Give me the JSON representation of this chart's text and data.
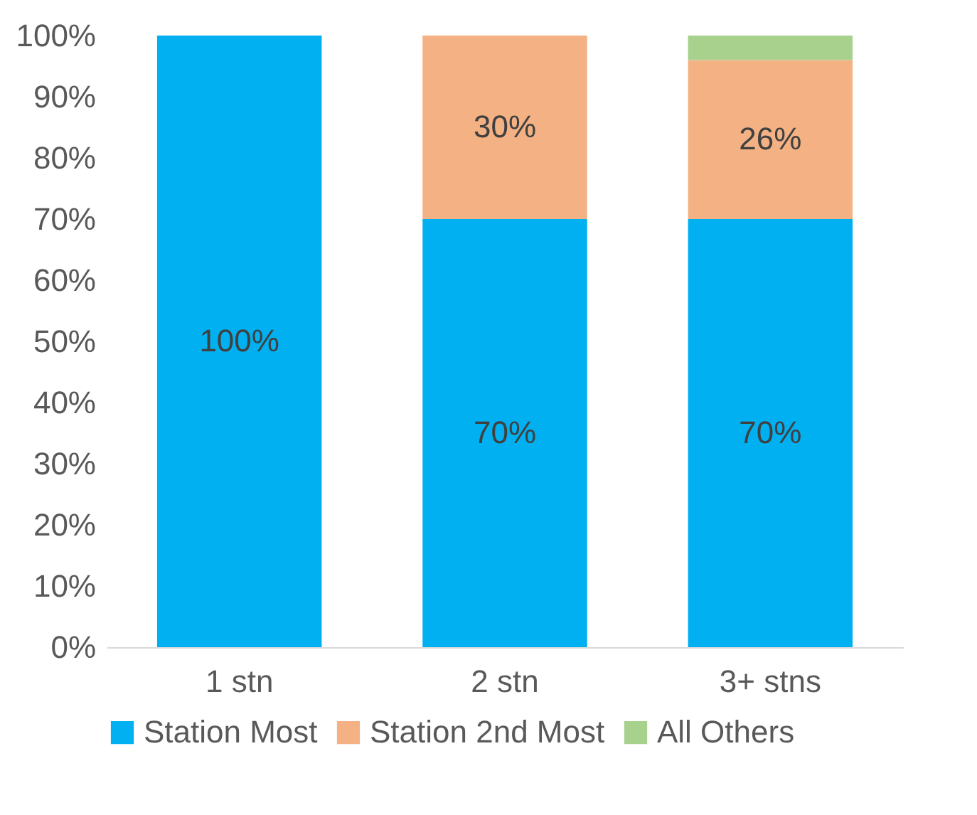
{
  "chart_data": {
    "type": "bar",
    "stacked": true,
    "categories": [
      "1 stn",
      "2 stn",
      "3+ stns"
    ],
    "series": [
      {
        "name": "Station Most",
        "color": "#00b0f0",
        "values": [
          100,
          70,
          70
        ],
        "value_labels": [
          "100%",
          "70%",
          "70%"
        ]
      },
      {
        "name": "Station 2nd Most",
        "color": "#f4b183",
        "values": [
          0,
          30,
          26
        ],
        "value_labels": [
          null,
          "30%",
          "26%"
        ]
      },
      {
        "name": "All Others",
        "color": "#a9d18e",
        "values": [
          0,
          0,
          4
        ],
        "value_labels": [
          null,
          null,
          null
        ]
      }
    ],
    "ylim": [
      0,
      100
    ],
    "yticks": [
      {
        "value": 0,
        "label": "0%"
      },
      {
        "value": 10,
        "label": "10%"
      },
      {
        "value": 20,
        "label": "20%"
      },
      {
        "value": 30,
        "label": "30%"
      },
      {
        "value": 40,
        "label": "40%"
      },
      {
        "value": 50,
        "label": "50%"
      },
      {
        "value": 60,
        "label": "60%"
      },
      {
        "value": 70,
        "label": "70%"
      },
      {
        "value": 80,
        "label": "80%"
      },
      {
        "value": 90,
        "label": "90%"
      },
      {
        "value": 100,
        "label": "100%"
      }
    ],
    "grid": false,
    "legend": "bottom"
  }
}
